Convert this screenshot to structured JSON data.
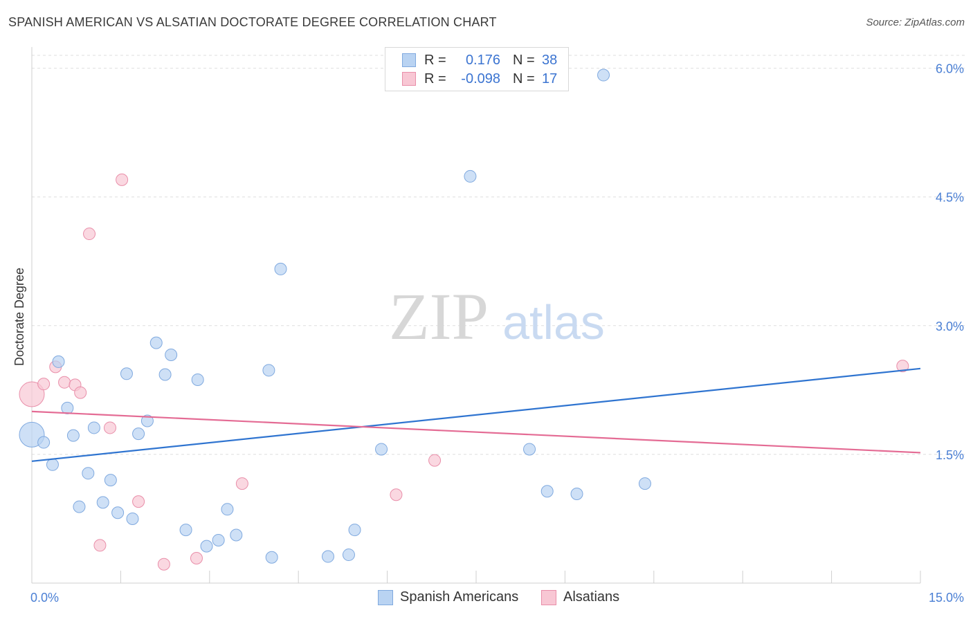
{
  "header": {
    "title": "SPANISH AMERICAN VS ALSATIAN DOCTORATE DEGREE CORRELATION CHART",
    "source": "Source: ZipAtlas.com"
  },
  "watermark": {
    "zip": "ZIP",
    "atlas": "atlas"
  },
  "colors": {
    "blue_fill": "#b9d3f2",
    "blue_stroke": "#7fa9df",
    "blue_line": "#2f74d0",
    "pink_fill": "#f8c7d4",
    "pink_stroke": "#e98ea9",
    "pink_line": "#e46b94",
    "tick_text": "#4a7fd4"
  },
  "legend": {
    "rows": [
      {
        "series": "Spanish Americans",
        "r_label": "R =",
        "r_value": "0.176",
        "n_label": "N =",
        "n_value": "38"
      },
      {
        "series": "Alsatians",
        "r_label": "R =",
        "r_value": "-0.098",
        "n_label": "N =",
        "n_value": "17"
      }
    ]
  },
  "bottom_legend": [
    "Spanish Americans",
    "Alsatians"
  ],
  "chart_data": {
    "type": "scatter",
    "title": "SPANISH AMERICAN VS ALSATIAN DOCTORATE DEGREE CORRELATION CHART",
    "xlabel": "",
    "ylabel": "Doctorate Degree",
    "xlim": [
      0,
      15
    ],
    "ylim": [
      0,
      6.15
    ],
    "x_tick_labels": [
      "0.0%",
      "15.0%"
    ],
    "y_ticks": [
      1.5,
      3.0,
      4.5,
      6.0
    ],
    "y_tick_labels": [
      "1.5%",
      "3.0%",
      "4.5%",
      "6.0%"
    ],
    "grid": true,
    "series": [
      {
        "name": "Spanish Americans",
        "points": [
          {
            "x": 0.0,
            "y": 1.73,
            "big": true
          },
          {
            "x": 0.2,
            "y": 1.64
          },
          {
            "x": 0.35,
            "y": 1.38
          },
          {
            "x": 0.45,
            "y": 2.58
          },
          {
            "x": 0.6,
            "y": 2.04
          },
          {
            "x": 0.7,
            "y": 1.72
          },
          {
            "x": 0.8,
            "y": 0.89
          },
          {
            "x": 0.95,
            "y": 1.28
          },
          {
            "x": 1.05,
            "y": 1.81
          },
          {
            "x": 1.2,
            "y": 0.94
          },
          {
            "x": 1.33,
            "y": 1.2
          },
          {
            "x": 1.45,
            "y": 0.82
          },
          {
            "x": 1.6,
            "y": 2.44
          },
          {
            "x": 1.7,
            "y": 0.75
          },
          {
            "x": 1.8,
            "y": 1.74
          },
          {
            "x": 1.95,
            "y": 1.89
          },
          {
            "x": 2.1,
            "y": 2.8
          },
          {
            "x": 2.25,
            "y": 2.43
          },
          {
            "x": 2.35,
            "y": 2.66
          },
          {
            "x": 2.6,
            "y": 0.62
          },
          {
            "x": 2.8,
            "y": 2.37
          },
          {
            "x": 2.95,
            "y": 0.43
          },
          {
            "x": 3.15,
            "y": 0.5
          },
          {
            "x": 3.3,
            "y": 0.86
          },
          {
            "x": 3.45,
            "y": 0.56
          },
          {
            "x": 4.0,
            "y": 2.48
          },
          {
            "x": 4.05,
            "y": 0.3
          },
          {
            "x": 4.2,
            "y": 3.66
          },
          {
            "x": 5.0,
            "y": 0.31
          },
          {
            "x": 5.35,
            "y": 0.33
          },
          {
            "x": 5.45,
            "y": 0.62
          },
          {
            "x": 5.9,
            "y": 1.56
          },
          {
            "x": 7.4,
            "y": 4.74
          },
          {
            "x": 8.4,
            "y": 1.56
          },
          {
            "x": 8.7,
            "y": 1.07
          },
          {
            "x": 9.2,
            "y": 1.04
          },
          {
            "x": 9.65,
            "y": 5.92
          },
          {
            "x": 10.35,
            "y": 1.16
          }
        ]
      },
      {
        "name": "Alsatians",
        "points": [
          {
            "x": 0.0,
            "y": 2.2,
            "big": true
          },
          {
            "x": 0.2,
            "y": 2.32
          },
          {
            "x": 0.4,
            "y": 2.52
          },
          {
            "x": 0.55,
            "y": 2.34
          },
          {
            "x": 0.73,
            "y": 2.31
          },
          {
            "x": 0.82,
            "y": 2.22
          },
          {
            "x": 0.97,
            "y": 4.07
          },
          {
            "x": 1.15,
            "y": 0.44
          },
          {
            "x": 1.32,
            "y": 1.81
          },
          {
            "x": 1.52,
            "y": 4.7
          },
          {
            "x": 1.8,
            "y": 0.95
          },
          {
            "x": 2.23,
            "y": 0.22
          },
          {
            "x": 2.78,
            "y": 0.29
          },
          {
            "x": 3.55,
            "y": 1.16
          },
          {
            "x": 6.15,
            "y": 1.03
          },
          {
            "x": 6.8,
            "y": 1.43
          },
          {
            "x": 14.7,
            "y": 2.53
          }
        ]
      }
    ],
    "trendlines": [
      {
        "series": "Spanish Americans",
        "x": [
          0,
          15
        ],
        "y": [
          1.42,
          2.5
        ]
      },
      {
        "series": "Alsatians",
        "x": [
          0,
          15
        ],
        "y": [
          2.0,
          1.52
        ]
      }
    ]
  }
}
